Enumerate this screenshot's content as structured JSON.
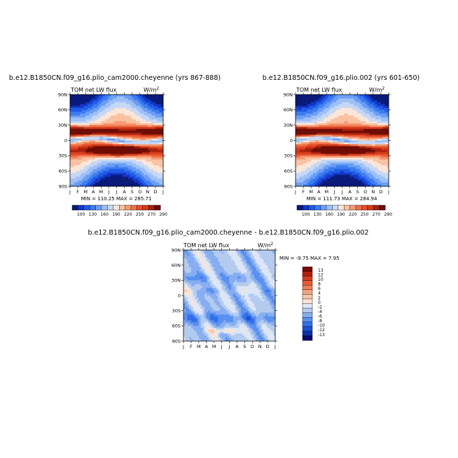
{
  "colors": {
    "seq": [
      "#0a1a7a",
      "#1237c8",
      "#1f5ae6",
      "#3d7cf0",
      "#6a9ef5",
      "#9dc0f7",
      "#c6d8f5",
      "#fbe6d8",
      "#f9c2a2",
      "#f69a73",
      "#f07148",
      "#e8502a",
      "#d13a1a",
      "#a8210e",
      "#6e0c05"
    ],
    "div": [
      "#0a0a6e",
      "#0b2fa8",
      "#1a52d6",
      "#3170ea",
      "#5a90f0",
      "#86aef1",
      "#b3cbee",
      "#dce6f5",
      "#fbe3d6",
      "#f8c6aa",
      "#f4a383",
      "#ee7e5a",
      "#e55a35",
      "#d63b1d",
      "#b41e0e",
      "#7e0806"
    ]
  },
  "chart_data": [
    {
      "type": "heatmap",
      "id": "left",
      "title": "b.e12.B1850CN.f09_g16.plio_cam2000.cheyenne (yrs 867-888)",
      "left_label": "TOM net LW flux",
      "units_label": "W/m",
      "units_sup": "2",
      "x_tick_labels": [
        "J",
        "F",
        "M",
        "A",
        "M",
        "J",
        "J",
        "A",
        "S",
        "O",
        "N",
        "D",
        "J"
      ],
      "y_tick_labels": [
        "90N",
        "60N",
        "30N",
        "0",
        "30S",
        "60S",
        "90S"
      ],
      "y_range": [
        90,
        -90
      ],
      "minmax_text": "MIN = 110.25   MAX = 285.71",
      "colorbar_labels": [
        "100",
        "130",
        "160",
        "190",
        "220",
        "250",
        "270",
        "290"
      ],
      "min": 110.25,
      "max": 285.71
    },
    {
      "type": "heatmap",
      "id": "right",
      "title": "b.e12.B1850CN.f09_g16.plio.002 (yrs 601-650)",
      "left_label": "TOM net LW flux",
      "units_label": "W/m",
      "units_sup": "2",
      "x_tick_labels": [
        "J",
        "F",
        "M",
        "A",
        "M",
        "J",
        "J",
        "A",
        "S",
        "O",
        "N",
        "D",
        "J"
      ],
      "y_tick_labels": [
        "90N",
        "60N",
        "30N",
        "0",
        "30S",
        "60S",
        "90S"
      ],
      "y_range": [
        90,
        -90
      ],
      "minmax_text": "MIN = 111.73   MAX = 284.94",
      "colorbar_labels": [
        "100",
        "130",
        "160",
        "190",
        "220",
        "250",
        "270",
        "290"
      ],
      "min": 111.73,
      "max": 284.94
    },
    {
      "type": "heatmap",
      "id": "diff",
      "title": "b.e12.B1850CN.f09_g16.plio_cam2000.cheyenne - b.e12.B1850CN.f09_g16.plio.002",
      "left_label": "TOM net LW flux",
      "units_label": "W/m",
      "units_sup": "2",
      "x_tick_labels": [
        "J",
        "F",
        "M",
        "A",
        "M",
        "J",
        "J",
        "A",
        "S",
        "O",
        "N",
        "D",
        "J"
      ],
      "y_tick_labels": [
        "90N",
        "60N",
        "30N",
        "0",
        "30S",
        "60S",
        "90S"
      ],
      "y_range": [
        90,
        -90
      ],
      "minmax_text": "MIN =   -9.75  MAX =    7.95",
      "colorbar_labels": [
        "13",
        "12",
        "10",
        "8",
        "6",
        "4",
        "2",
        "0",
        "-2",
        "-4",
        "-6",
        "-8",
        "-10",
        "-12",
        "-13"
      ],
      "min": -9.75,
      "max": 7.95
    }
  ]
}
